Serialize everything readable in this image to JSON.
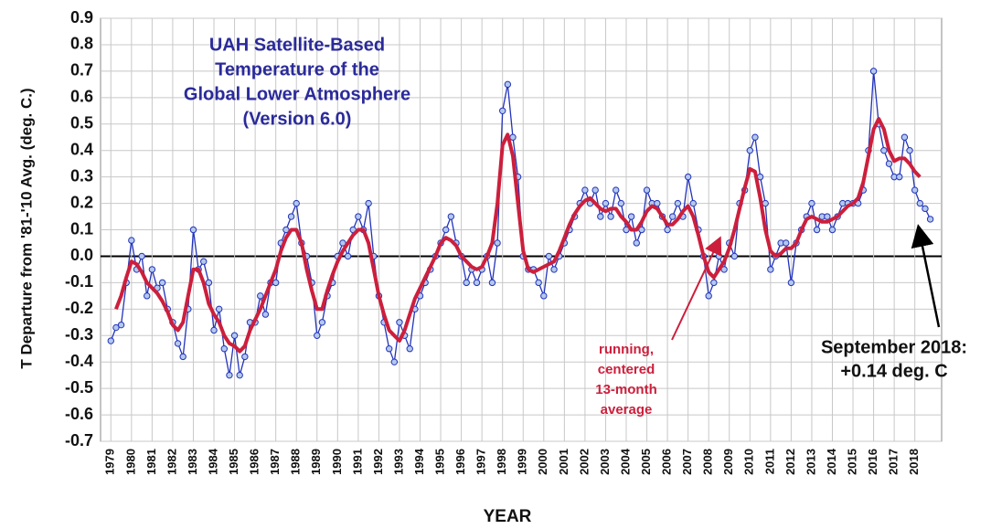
{
  "chart_data": {
    "type": "line",
    "title": [
      "UAH Satellite-Based",
      "Temperature of the",
      "Global Lower Atmosphere",
      "(Version 6.0)"
    ],
    "y_label": "T Departure from '81-'10 Avg. (deg. C.)",
    "x_label": "YEAR",
    "annotation_average": [
      "running,",
      "centered",
      "13-month",
      "average"
    ],
    "annotation_latest": [
      "September 2018:",
      "+0.14 deg. C"
    ],
    "grid": true,
    "xlim": [
      1978.5,
      2019.3
    ],
    "ylim": [
      -0.7,
      0.9
    ],
    "xticks": [
      1979,
      1980,
      1981,
      1982,
      1983,
      1984,
      1985,
      1986,
      1987,
      1988,
      1989,
      1990,
      1991,
      1992,
      1993,
      1994,
      1995,
      1996,
      1997,
      1998,
      1999,
      2000,
      2001,
      2002,
      2003,
      2004,
      2005,
      2006,
      2007,
      2008,
      2009,
      2010,
      2011,
      2012,
      2013,
      2014,
      2015,
      2016,
      2017,
      2018
    ],
    "yticks": [
      0.9,
      0.8,
      0.7,
      0.6,
      0.5,
      0.4,
      0.3,
      0.2,
      0.1,
      {
        "value": 0,
        "label": "0.0"
      },
      -0.1,
      -0.2,
      -0.3,
      -0.4,
      -0.5,
      -0.6,
      -0.7
    ],
    "x": [
      1979,
      1979.25,
      1979.5,
      1979.75,
      1980,
      1980.25,
      1980.5,
      1980.75,
      1981,
      1981.25,
      1981.5,
      1981.75,
      1982,
      1982.25,
      1982.5,
      1982.75,
      1983,
      1983.25,
      1983.5,
      1983.75,
      1984,
      1984.25,
      1984.5,
      1984.75,
      1985,
      1985.25,
      1985.5,
      1985.75,
      1986,
      1986.25,
      1986.5,
      1986.75,
      1987,
      1987.25,
      1987.5,
      1987.75,
      1988,
      1988.25,
      1988.5,
      1988.75,
      1989,
      1989.25,
      1989.5,
      1989.75,
      1990,
      1990.25,
      1990.5,
      1990.75,
      1991,
      1991.25,
      1991.5,
      1991.75,
      1992,
      1992.25,
      1992.5,
      1992.75,
      1993,
      1993.25,
      1993.5,
      1993.75,
      1994,
      1994.25,
      1994.5,
      1994.75,
      1995,
      1995.25,
      1995.5,
      1995.75,
      1996,
      1996.25,
      1996.5,
      1996.75,
      1997,
      1997.25,
      1997.5,
      1997.75,
      1998,
      1998.25,
      1998.5,
      1998.75,
      1999,
      1999.25,
      1999.5,
      1999.75,
      2000,
      2000.25,
      2000.5,
      2000.75,
      2001,
      2001.25,
      2001.5,
      2001.75,
      2002,
      2002.25,
      2002.5,
      2002.75,
      2003,
      2003.25,
      2003.5,
      2003.75,
      2004,
      2004.25,
      2004.5,
      2004.75,
      2005,
      2005.25,
      2005.5,
      2005.75,
      2006,
      2006.25,
      2006.5,
      2006.75,
      2007,
      2007.25,
      2007.5,
      2007.75,
      2008,
      2008.25,
      2008.5,
      2008.75,
      2009,
      2009.25,
      2009.5,
      2009.75,
      2010,
      2010.25,
      2010.5,
      2010.75,
      2011,
      2011.25,
      2011.5,
      2011.75,
      2012,
      2012.25,
      2012.5,
      2012.75,
      2013,
      2013.25,
      2013.5,
      2013.75,
      2014,
      2014.25,
      2014.5,
      2014.75,
      2015,
      2015.25,
      2015.5,
      2015.75,
      2016,
      2016.25,
      2016.5,
      2016.75,
      2017,
      2017.25,
      2017.5,
      2017.75,
      2018,
      2018.25,
      2018.5,
      2018.75
    ],
    "series": [
      {
        "color": "#2233bb",
        "marker_fill": "#b4c8ec",
        "values": [
          -0.32,
          -0.27,
          -0.26,
          -0.1,
          0.06,
          -0.05,
          0.0,
          -0.15,
          -0.05,
          -0.12,
          -0.1,
          -0.2,
          -0.25,
          -0.33,
          -0.38,
          -0.2,
          0.1,
          -0.05,
          -0.02,
          -0.1,
          -0.28,
          -0.2,
          -0.35,
          -0.45,
          -0.3,
          -0.45,
          -0.38,
          -0.25,
          -0.25,
          -0.15,
          -0.22,
          -0.1,
          -0.1,
          0.05,
          0.1,
          0.15,
          0.2,
          0.05,
          0.0,
          -0.1,
          -0.3,
          -0.25,
          -0.15,
          -0.1,
          0.0,
          0.05,
          0.0,
          0.1,
          0.15,
          0.1,
          0.2,
          0.0,
          -0.15,
          -0.25,
          -0.35,
          -0.4,
          -0.25,
          -0.3,
          -0.35,
          -0.2,
          -0.15,
          -0.1,
          -0.05,
          0.0,
          0.05,
          0.1,
          0.15,
          0.05,
          0.0,
          -0.1,
          -0.05,
          -0.1,
          -0.05,
          0.0,
          -0.1,
          0.05,
          0.55,
          0.65,
          0.45,
          0.3,
          0.0,
          -0.05,
          -0.05,
          -0.1,
          -0.15,
          0.0,
          -0.05,
          0.0,
          0.05,
          0.1,
          0.15,
          0.2,
          0.25,
          0.2,
          0.25,
          0.15,
          0.2,
          0.15,
          0.25,
          0.2,
          0.1,
          0.15,
          0.05,
          0.1,
          0.25,
          0.2,
          0.2,
          0.15,
          0.1,
          0.15,
          0.2,
          0.15,
          0.3,
          0.2,
          0.1,
          0.0,
          -0.15,
          -0.1,
          0.0,
          -0.05,
          0.05,
          0.0,
          0.2,
          0.25,
          0.4,
          0.45,
          0.3,
          0.2,
          -0.05,
          0.0,
          0.05,
          0.05,
          -0.1,
          0.05,
          0.1,
          0.15,
          0.2,
          0.1,
          0.15,
          0.15,
          0.1,
          0.15,
          0.2,
          0.2,
          0.2,
          0.2,
          0.25,
          0.4,
          0.7,
          0.5,
          0.4,
          0.35,
          0.3,
          0.3,
          0.45,
          0.4,
          0.25,
          0.2,
          0.18,
          0.14
        ]
      },
      {
        "color": "#cc1f3c",
        "values": [
          null,
          -0.2,
          -0.15,
          -0.08,
          -0.02,
          -0.03,
          -0.06,
          -0.1,
          -0.12,
          -0.14,
          -0.17,
          -0.21,
          -0.26,
          -0.28,
          -0.25,
          -0.15,
          -0.05,
          -0.05,
          -0.1,
          -0.18,
          -0.22,
          -0.25,
          -0.3,
          -0.33,
          -0.34,
          -0.36,
          -0.34,
          -0.28,
          -0.24,
          -0.2,
          -0.15,
          -0.1,
          -0.05,
          0.02,
          0.07,
          0.1,
          0.1,
          0.05,
          -0.05,
          -0.13,
          -0.2,
          -0.2,
          -0.13,
          -0.07,
          -0.02,
          0.02,
          0.05,
          0.08,
          0.1,
          0.1,
          0.05,
          -0.05,
          -0.15,
          -0.22,
          -0.28,
          -0.3,
          -0.32,
          -0.28,
          -0.22,
          -0.16,
          -0.12,
          -0.08,
          -0.04,
          0.0,
          0.05,
          0.07,
          0.06,
          0.04,
          0.0,
          -0.02,
          -0.04,
          -0.05,
          -0.04,
          0.0,
          0.05,
          0.2,
          0.42,
          0.46,
          0.38,
          0.2,
          0.02,
          -0.05,
          -0.06,
          -0.05,
          -0.04,
          -0.03,
          -0.02,
          0.02,
          0.07,
          0.12,
          0.16,
          0.19,
          0.21,
          0.22,
          0.2,
          0.18,
          0.17,
          0.18,
          0.18,
          0.15,
          0.13,
          0.1,
          0.1,
          0.13,
          0.17,
          0.19,
          0.18,
          0.15,
          0.12,
          0.12,
          0.14,
          0.17,
          0.19,
          0.15,
          0.08,
          0.0,
          -0.06,
          -0.08,
          -0.05,
          -0.02,
          0.03,
          0.1,
          0.18,
          0.26,
          0.33,
          0.32,
          0.22,
          0.1,
          0.02,
          0.0,
          0.01,
          0.03,
          0.03,
          0.05,
          0.1,
          0.14,
          0.15,
          0.14,
          0.13,
          0.13,
          0.14,
          0.15,
          0.17,
          0.19,
          0.2,
          0.22,
          0.28,
          0.38,
          0.48,
          0.52,
          0.48,
          0.4,
          0.36,
          0.37,
          0.37,
          0.35,
          0.32,
          0.3,
          null,
          null
        ]
      }
    ]
  }
}
